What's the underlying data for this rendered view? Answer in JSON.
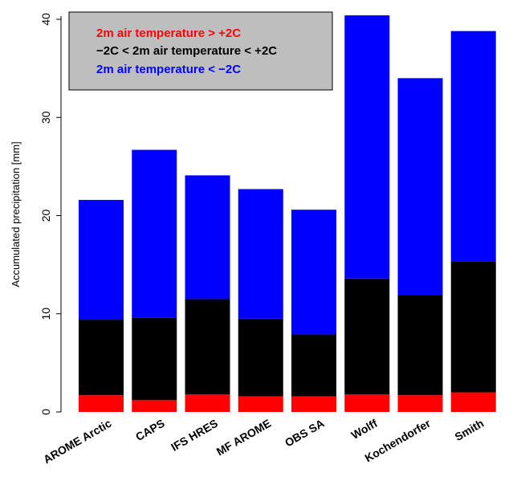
{
  "chart_data": {
    "type": "bar",
    "stacked": true,
    "categories": [
      "AROME Arctic",
      "CAPS",
      "IFS HRES",
      "MF AROME",
      "OBS SA",
      "Wolff",
      "Kochendorfer",
      "Smith"
    ],
    "series": [
      {
        "name": "2m air temperature > +2C",
        "color": "#ff0000",
        "values": [
          1.7,
          1.2,
          1.8,
          1.6,
          1.6,
          1.8,
          1.7,
          2.0
        ]
      },
      {
        "name": "−2C < 2m air temperature < +2C",
        "color": "#000000",
        "values": [
          7.7,
          8.4,
          9.7,
          7.9,
          6.3,
          11.8,
          10.2,
          13.3
        ]
      },
      {
        "name": "2m air temperature < −2C",
        "color": "#0000ff",
        "values": [
          12.2,
          17.1,
          12.6,
          13.2,
          12.7,
          26.8,
          22.1,
          23.5
        ]
      }
    ],
    "ylabel": "Accumulated precipitation [mm]",
    "yticks": [
      0,
      10,
      20,
      30,
      40
    ],
    "ylim": [
      0,
      40.5
    ],
    "legend": {
      "placement": "top-left",
      "background": "#bebebe"
    },
    "grid": false
  }
}
